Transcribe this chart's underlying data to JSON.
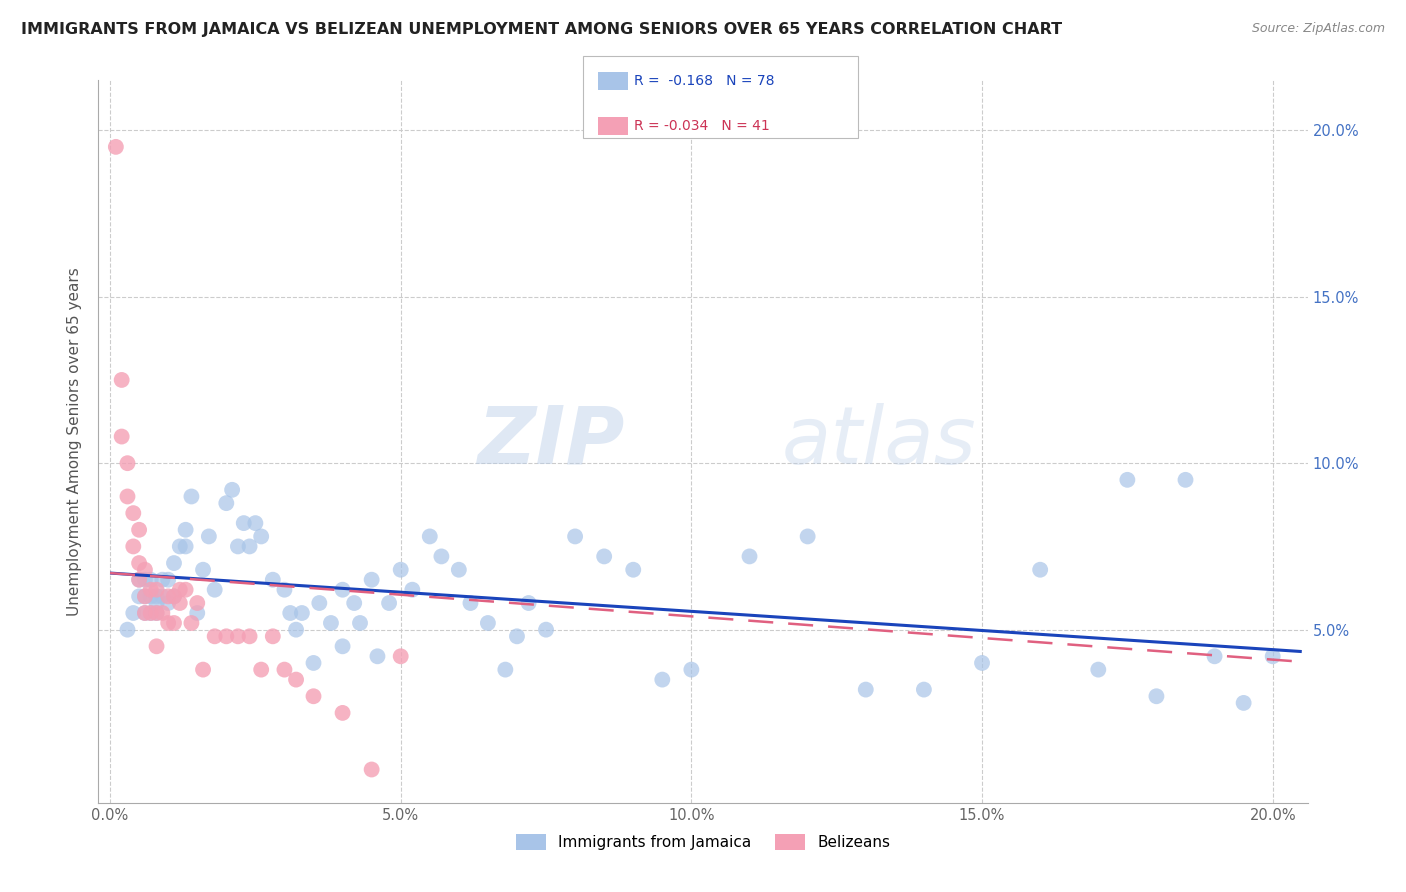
{
  "title": "IMMIGRANTS FROM JAMAICA VS BELIZEAN UNEMPLOYMENT AMONG SENIORS OVER 65 YEARS CORRELATION CHART",
  "source": "Source: ZipAtlas.com",
  "ylabel": "Unemployment Among Seniors over 65 years",
  "ytick_labels": [
    "5.0%",
    "10.0%",
    "15.0%",
    "20.0%"
  ],
  "xtick_labels": [
    "0.0%",
    "5.0%",
    "10.0%",
    "15.0%",
    "20.0%"
  ],
  "legend_blue_label": "Immigrants from Jamaica",
  "legend_pink_label": "Belizeans",
  "legend_blue_r": "R =  -0.168",
  "legend_blue_n": "N = 78",
  "legend_pink_r": "R = -0.034",
  "legend_pink_n": "N = 41",
  "blue_color": "#a8c4e8",
  "pink_color": "#f4a0b5",
  "trendline_blue_color": "#1a44bb",
  "trendline_pink_color": "#e06080",
  "watermark_zip": "ZIP",
  "watermark_atlas": "atlas",
  "blue_x": [
    0.003,
    0.004,
    0.005,
    0.005,
    0.006,
    0.006,
    0.006,
    0.007,
    0.007,
    0.007,
    0.008,
    0.008,
    0.008,
    0.009,
    0.009,
    0.01,
    0.01,
    0.011,
    0.011,
    0.012,
    0.013,
    0.013,
    0.014,
    0.015,
    0.016,
    0.017,
    0.018,
    0.02,
    0.021,
    0.022,
    0.023,
    0.024,
    0.025,
    0.026,
    0.028,
    0.03,
    0.031,
    0.032,
    0.033,
    0.035,
    0.036,
    0.038,
    0.04,
    0.04,
    0.042,
    0.043,
    0.045,
    0.046,
    0.048,
    0.05,
    0.052,
    0.055,
    0.057,
    0.06,
    0.062,
    0.065,
    0.068,
    0.07,
    0.072,
    0.075,
    0.08,
    0.085,
    0.09,
    0.095,
    0.1,
    0.11,
    0.12,
    0.13,
    0.14,
    0.15,
    0.16,
    0.17,
    0.175,
    0.18,
    0.185,
    0.19,
    0.195,
    0.2
  ],
  "blue_y": [
    0.05,
    0.055,
    0.06,
    0.065,
    0.055,
    0.06,
    0.065,
    0.055,
    0.06,
    0.065,
    0.058,
    0.055,
    0.06,
    0.065,
    0.06,
    0.065,
    0.058,
    0.07,
    0.06,
    0.075,
    0.08,
    0.075,
    0.09,
    0.055,
    0.068,
    0.078,
    0.062,
    0.088,
    0.092,
    0.075,
    0.082,
    0.075,
    0.082,
    0.078,
    0.065,
    0.062,
    0.055,
    0.05,
    0.055,
    0.04,
    0.058,
    0.052,
    0.062,
    0.045,
    0.058,
    0.052,
    0.065,
    0.042,
    0.058,
    0.068,
    0.062,
    0.078,
    0.072,
    0.068,
    0.058,
    0.052,
    0.038,
    0.048,
    0.058,
    0.05,
    0.078,
    0.072,
    0.068,
    0.035,
    0.038,
    0.072,
    0.078,
    0.032,
    0.032,
    0.04,
    0.068,
    0.038,
    0.095,
    0.03,
    0.095,
    0.042,
    0.028,
    0.042
  ],
  "pink_x": [
    0.001,
    0.002,
    0.002,
    0.003,
    0.003,
    0.004,
    0.004,
    0.005,
    0.005,
    0.005,
    0.006,
    0.006,
    0.006,
    0.007,
    0.007,
    0.008,
    0.008,
    0.008,
    0.009,
    0.01,
    0.01,
    0.011,
    0.011,
    0.012,
    0.012,
    0.013,
    0.014,
    0.015,
    0.016,
    0.018,
    0.02,
    0.022,
    0.024,
    0.026,
    0.028,
    0.03,
    0.032,
    0.035,
    0.04,
    0.045,
    0.05
  ],
  "pink_y": [
    0.195,
    0.125,
    0.108,
    0.1,
    0.09,
    0.085,
    0.075,
    0.08,
    0.07,
    0.065,
    0.068,
    0.06,
    0.055,
    0.062,
    0.055,
    0.062,
    0.055,
    0.045,
    0.055,
    0.06,
    0.052,
    0.06,
    0.052,
    0.062,
    0.058,
    0.062,
    0.052,
    0.058,
    0.038,
    0.048,
    0.048,
    0.048,
    0.048,
    0.038,
    0.048,
    0.038,
    0.035,
    0.03,
    0.025,
    0.008,
    0.042
  ]
}
